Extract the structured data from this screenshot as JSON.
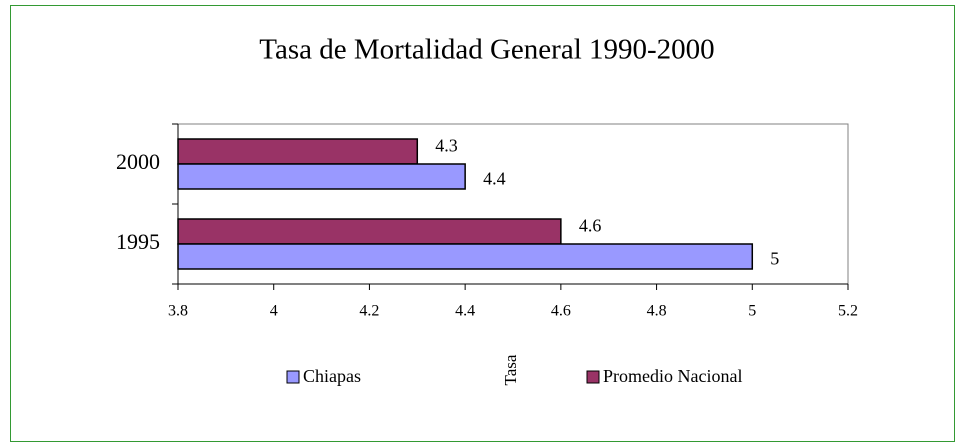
{
  "chart_data": {
    "type": "hbar",
    "title": "Tasa de Mortalidad General 1990-2000",
    "categories": [
      "2000",
      "1995"
    ],
    "series": [
      {
        "name": "Promedio Nacional",
        "color": "#993366",
        "values": [
          4.3,
          4.6
        ]
      },
      {
        "name": "Chiapas",
        "color": "#9999ff",
        "values": [
          4.4,
          5
        ]
      }
    ],
    "legend_order": [
      1,
      0
    ],
    "xlabel": "Tasa",
    "xlim": [
      3.8,
      5.2
    ],
    "xticks": [
      3.8,
      4,
      4.2,
      4.4,
      4.6,
      4.8,
      5,
      5.2
    ]
  }
}
